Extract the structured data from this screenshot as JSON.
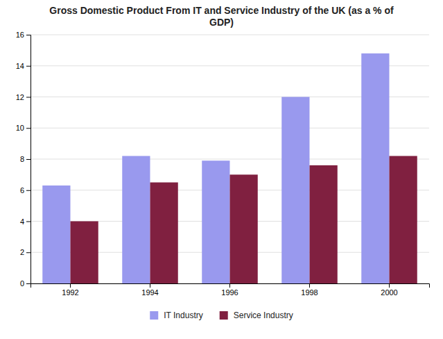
{
  "chart_data": {
    "type": "bar",
    "title": "Gross Domestic Product From IT and Service Industry of the UK (as a % of\nGDP)",
    "categories": [
      "1992",
      "1994",
      "1996",
      "1998",
      "2000"
    ],
    "series": [
      {
        "name": "IT Industry",
        "color": "#9999ee",
        "values": [
          6.3,
          8.2,
          7.9,
          12.0,
          14.8
        ]
      },
      {
        "name": "Service Industry",
        "color": "#802040",
        "values": [
          4.0,
          6.5,
          7.0,
          7.6,
          8.2
        ]
      }
    ],
    "ylim": [
      0,
      16
    ],
    "yticks": [
      0,
      2,
      4,
      6,
      8,
      10,
      12,
      14,
      16
    ],
    "grid": true,
    "legend": "bottom"
  }
}
